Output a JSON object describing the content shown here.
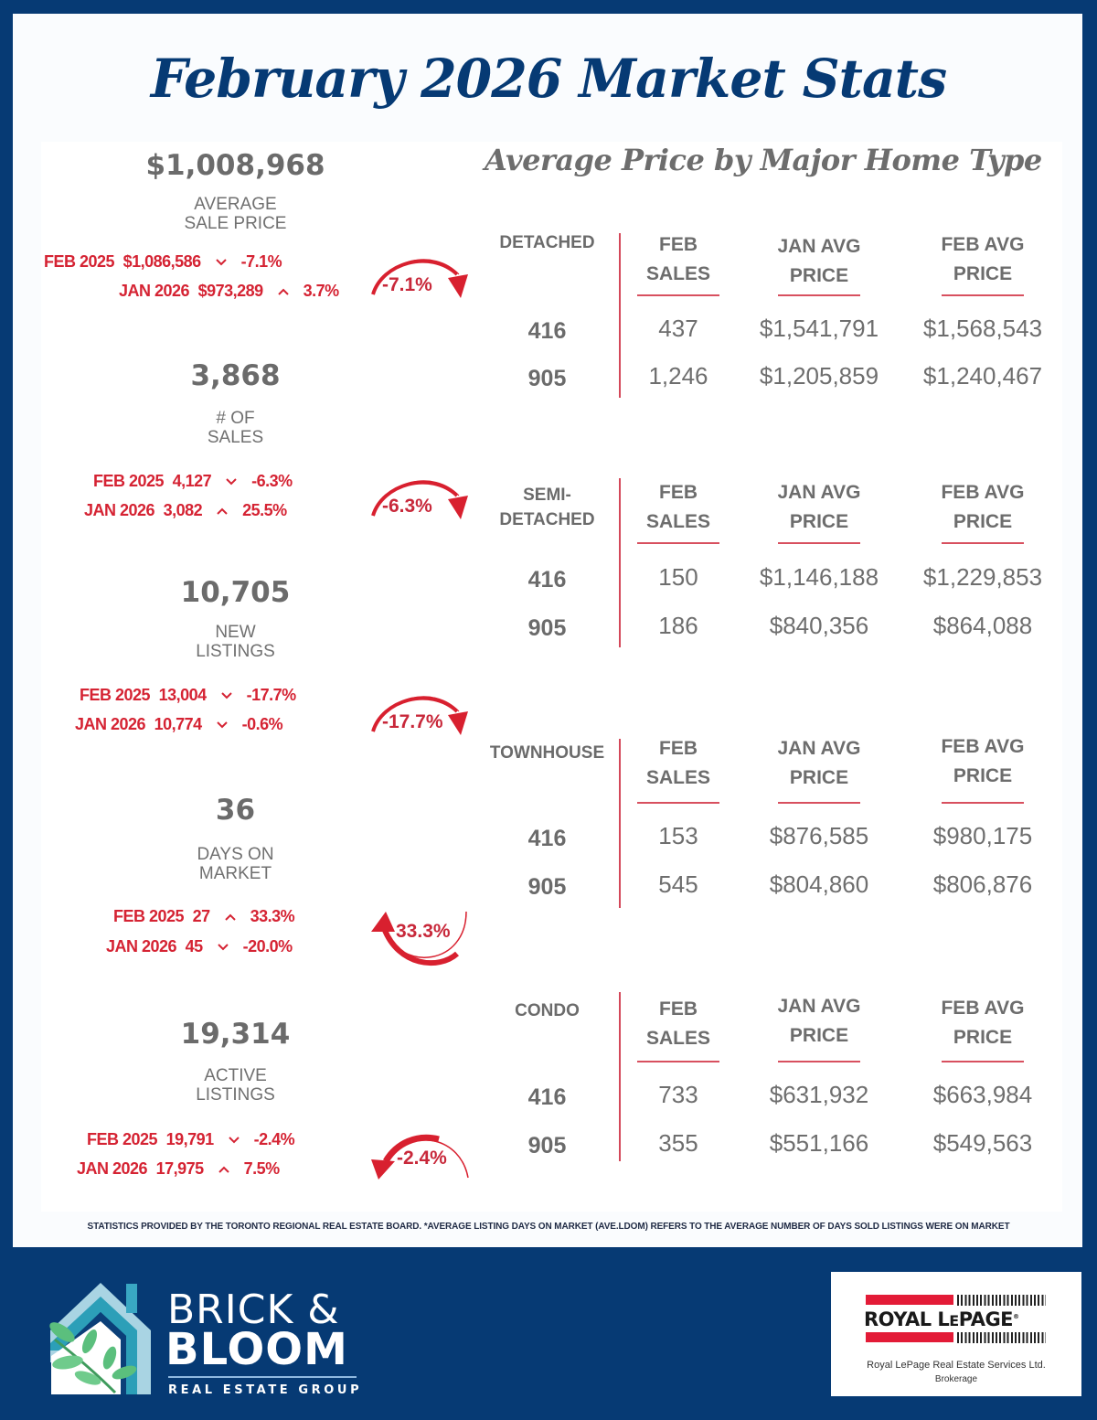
{
  "header": {
    "title": "February 2026 Market Stats",
    "subtitle": "Average Price by Major Home Type"
  },
  "colors": {
    "brand_navy": "#063a74",
    "accent_red": "#d52333",
    "text_gray": "#6b6b6b"
  },
  "stats": [
    {
      "value": "$1,008,968",
      "label_line1": "AVERAGE",
      "label_line2": "SALE PRICE",
      "comparisons": [
        {
          "label": "FEB 2025",
          "value": "$1,086,586",
          "direction": "down",
          "arrow": "⌄",
          "pct": "-7.1%"
        },
        {
          "label": "JAN 2026",
          "value": "$973,289",
          "direction": "up",
          "arrow": "⌃",
          "pct": "3.7%"
        }
      ],
      "badge": {
        "text": "-7.1%",
        "direction": "down"
      }
    },
    {
      "value": "3,868",
      "label_line1": "# OF",
      "label_line2": "SALES",
      "comparisons": [
        {
          "label": "FEB 2025",
          "value": "4,127",
          "direction": "down",
          "arrow": "⌄",
          "pct": "-6.3%"
        },
        {
          "label": "JAN 2026",
          "value": "3,082",
          "direction": "up",
          "arrow": "⌃",
          "pct": "25.5%"
        }
      ],
      "badge": {
        "text": "-6.3%",
        "direction": "down"
      }
    },
    {
      "value": "10,705",
      "label_line1": "NEW",
      "label_line2": "LISTINGS",
      "comparisons": [
        {
          "label": "FEB 2025",
          "value": "13,004",
          "direction": "down",
          "arrow": "⌄",
          "pct": "-17.7%"
        },
        {
          "label": "JAN 2026",
          "value": "10,774",
          "direction": "down",
          "arrow": "⌄",
          "pct": "-0.6%"
        }
      ],
      "badge": {
        "text": "-17.7%",
        "direction": "down"
      }
    },
    {
      "value": "36",
      "label_line1": "DAYS ON",
      "label_line2": "MARKET",
      "comparisons": [
        {
          "label": "FEB 2025",
          "value": "27",
          "direction": "up",
          "arrow": "⌃",
          "pct": "33.3%"
        },
        {
          "label": "JAN 2026",
          "value": "45",
          "direction": "down",
          "arrow": "⌄",
          "pct": "-20.0%"
        }
      ],
      "badge": {
        "text": "33.3%",
        "direction": "up"
      }
    },
    {
      "value": "19,314",
      "label_line1": "ACTIVE",
      "label_line2": "LISTINGS",
      "comparisons": [
        {
          "label": "FEB 2025",
          "value": "19,791",
          "direction": "down",
          "arrow": "⌄",
          "pct": "-2.4%"
        },
        {
          "label": "JAN 2026",
          "value": "17,975",
          "direction": "up",
          "arrow": "⌃",
          "pct": "7.5%"
        }
      ],
      "badge": {
        "text": "-2.4%",
        "direction": "down-left"
      }
    }
  ],
  "table_columns": {
    "feb_sales": [
      "FEB",
      "SALES"
    ],
    "jan_avg": [
      "JAN AVG",
      "PRICE"
    ],
    "feb_avg": [
      "FEB AVG",
      "PRICE"
    ]
  },
  "home_types": [
    {
      "type_line1": "DETACHED",
      "type_line2": "",
      "rows": [
        {
          "area": "416",
          "feb_sales": "437",
          "jan_avg_price": "$1,541,791",
          "feb_avg_price": "$1,568,543"
        },
        {
          "area": "905",
          "feb_sales": "1,246",
          "jan_avg_price": "$1,205,859",
          "feb_avg_price": "$1,240,467"
        }
      ]
    },
    {
      "type_line1": "SEMI-",
      "type_line2": "DETACHED",
      "rows": [
        {
          "area": "416",
          "feb_sales": "150",
          "jan_avg_price": "$1,146,188",
          "feb_avg_price": "$1,229,853"
        },
        {
          "area": "905",
          "feb_sales": "186",
          "jan_avg_price": "$840,356",
          "feb_avg_price": "$864,088"
        }
      ]
    },
    {
      "type_line1": "TOWNHOUSE",
      "type_line2": "",
      "rows": [
        {
          "area": "416",
          "feb_sales": "153",
          "jan_avg_price": "$876,585",
          "feb_avg_price": "$980,175"
        },
        {
          "area": "905",
          "feb_sales": "545",
          "jan_avg_price": "$804,860",
          "feb_avg_price": "$806,876"
        }
      ]
    },
    {
      "type_line1": "CONDO",
      "type_line2": "",
      "rows": [
        {
          "area": "416",
          "feb_sales": "733",
          "jan_avg_price": "$631,932",
          "feb_avg_price": "$663,984"
        },
        {
          "area": "905",
          "feb_sales": "355",
          "jan_avg_price": "$551,166",
          "feb_avg_price": "$549,563"
        }
      ]
    }
  ],
  "footnote": "STATISTICS PROVIDED BY THE TORONTO REGIONAL REAL ESTATE BOARD. *AVERAGE LISTING DAYS ON MARKET (AVE.LDOM) REFERS TO THE AVERAGE NUMBER OF DAYS SOLD LISTINGS WERE ON MARKET",
  "footer": {
    "brand_line1": "BRICK &",
    "brand_line2": "BLOOM",
    "brand_line3": "REAL ESTATE GROUP",
    "brokerage_logo": "ROYAL LEPAGE",
    "brokerage_name": "Royal LePage Real Estate Services Ltd.",
    "brokerage_type": "Brokerage"
  }
}
